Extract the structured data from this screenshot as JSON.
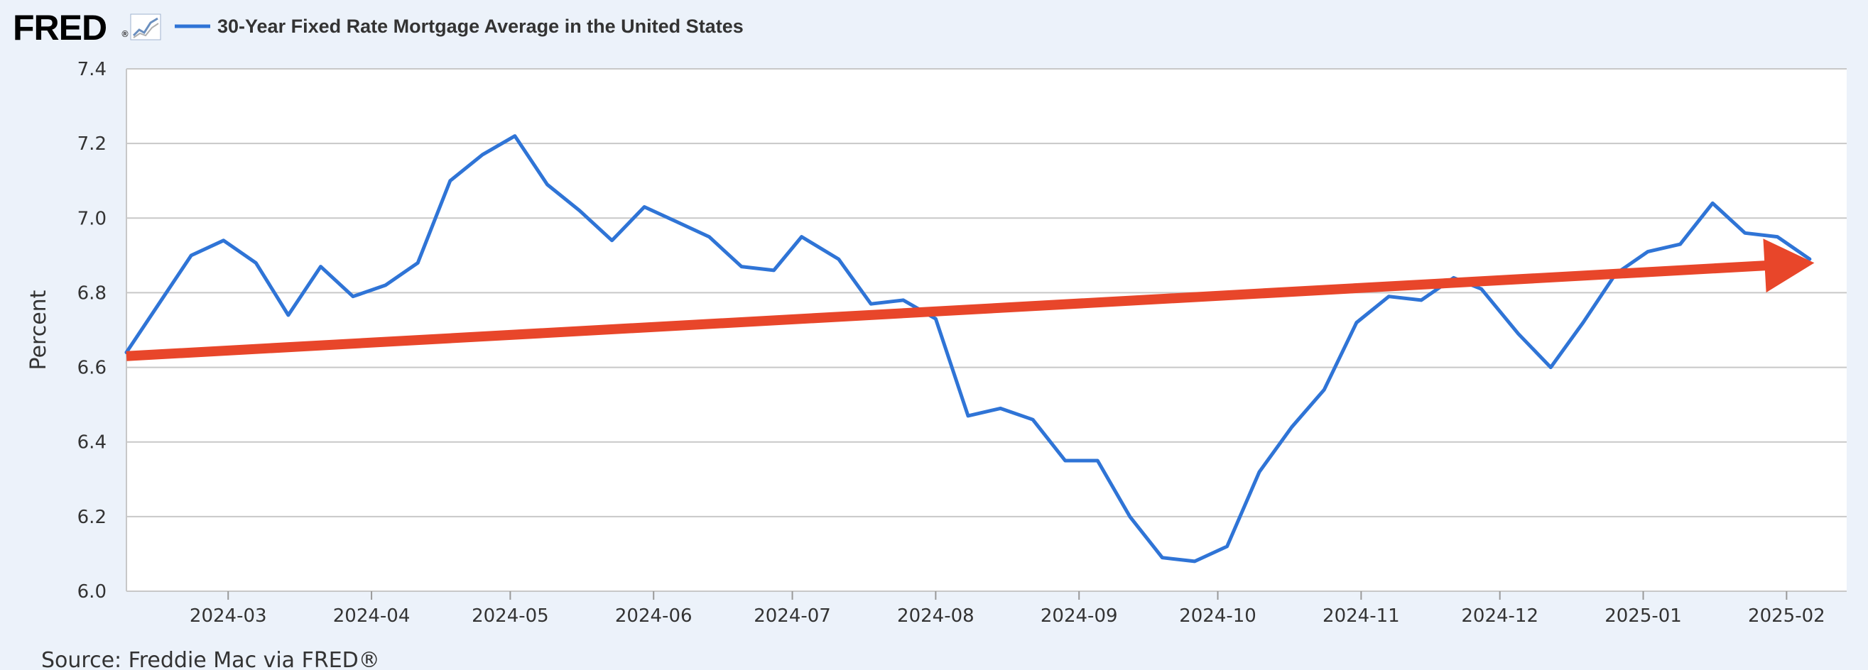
{
  "header": {
    "logo_text": "FRED",
    "logo_mark": "®",
    "logo_icon": "fred-chart-icon",
    "legend_label": "30-Year Fixed Rate Mortgage Average in the United States"
  },
  "source": "Source: Freddie Mac via FRED®",
  "chart_data": {
    "type": "line",
    "title": "",
    "xlabel": "",
    "ylabel": "Percent",
    "ylim": [
      6.0,
      7.4
    ],
    "y_ticks": [
      "6.0",
      "6.2",
      "6.4",
      "6.6",
      "6.8",
      "7.0",
      "7.2",
      "7.4"
    ],
    "x_range": [
      "2024-02-08",
      "2025-02-14"
    ],
    "x_ticks": [
      "2024-03",
      "2024-04",
      "2024-05",
      "2024-06",
      "2024-07",
      "2024-08",
      "2024-09",
      "2024-10",
      "2024-11",
      "2024-12",
      "2025-01",
      "2025-02"
    ],
    "grid": true,
    "legend_position": "top-left",
    "series": [
      {
        "name": "30-Year Fixed Rate Mortgage Average in the United States",
        "color": "#2f74d6",
        "x": [
          "2024-02-08",
          "2024-02-15",
          "2024-02-22",
          "2024-02-29",
          "2024-03-07",
          "2024-03-14",
          "2024-03-21",
          "2024-03-28",
          "2024-04-04",
          "2024-04-11",
          "2024-04-18",
          "2024-04-25",
          "2024-05-02",
          "2024-05-09",
          "2024-05-16",
          "2024-05-23",
          "2024-05-30",
          "2024-06-06",
          "2024-06-13",
          "2024-06-20",
          "2024-06-27",
          "2024-07-03",
          "2024-07-11",
          "2024-07-18",
          "2024-07-25",
          "2024-08-01",
          "2024-08-08",
          "2024-08-15",
          "2024-08-22",
          "2024-08-29",
          "2024-09-05",
          "2024-09-12",
          "2024-09-19",
          "2024-09-26",
          "2024-10-03",
          "2024-10-10",
          "2024-10-17",
          "2024-10-24",
          "2024-10-31",
          "2024-11-07",
          "2024-11-14",
          "2024-11-21",
          "2024-11-27",
          "2024-12-05",
          "2024-12-12",
          "2024-12-19",
          "2024-12-26",
          "2025-01-02",
          "2025-01-09",
          "2025-01-16",
          "2025-01-23",
          "2025-01-30",
          "2025-02-06"
        ],
        "values": [
          6.64,
          6.77,
          6.9,
          6.94,
          6.88,
          6.74,
          6.87,
          6.79,
          6.82,
          6.88,
          7.1,
          7.17,
          7.22,
          7.09,
          7.02,
          6.94,
          7.03,
          6.99,
          6.95,
          6.87,
          6.86,
          6.95,
          6.89,
          6.77,
          6.78,
          6.73,
          6.47,
          6.49,
          6.46,
          6.35,
          6.35,
          6.2,
          6.09,
          6.08,
          6.12,
          6.32,
          6.44,
          6.54,
          6.72,
          6.79,
          6.78,
          6.84,
          6.81,
          6.69,
          6.6,
          6.72,
          6.85,
          6.91,
          6.93,
          7.04,
          6.96,
          6.95,
          6.89
        ]
      }
    ],
    "annotations": [
      {
        "type": "trend-arrow",
        "color": "#e8462a",
        "from": [
          "2024-02-08",
          6.63
        ],
        "to": [
          "2025-02-07",
          6.88
        ]
      }
    ]
  }
}
